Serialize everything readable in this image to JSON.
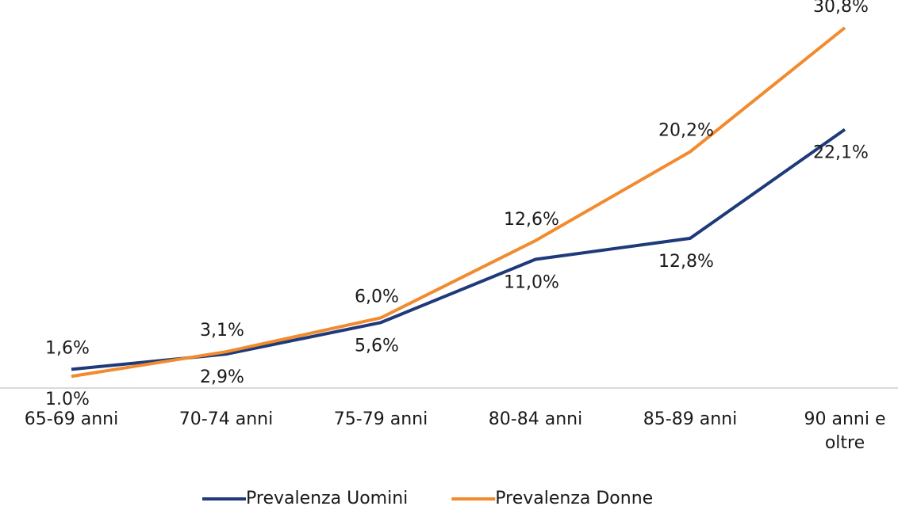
{
  "chart_data": {
    "type": "line",
    "categories": [
      "65-69 anni",
      "70-74 anni",
      "75-79 anni",
      "80-84 anni",
      "85-89 anni",
      "90 anni e oltre"
    ],
    "series": [
      {
        "name": "Prevalenza Uomini",
        "color": "#1f3a7a",
        "values": [
          1.6,
          2.9,
          5.6,
          11.0,
          12.8,
          22.1
        ],
        "value_labels": [
          "1,6%",
          "2,9%",
          "5,6%",
          "11,0%",
          "12,8%",
          "22,1%"
        ]
      },
      {
        "name": "Prevalenza Donne",
        "color": "#f28a2e",
        "values": [
          1.0,
          3.1,
          6.0,
          12.6,
          20.2,
          30.8
        ],
        "value_labels": [
          "1.0%",
          "3,1%",
          "6,0%",
          "12,6%",
          "20,2%",
          "30,8%"
        ]
      }
    ]
  }
}
